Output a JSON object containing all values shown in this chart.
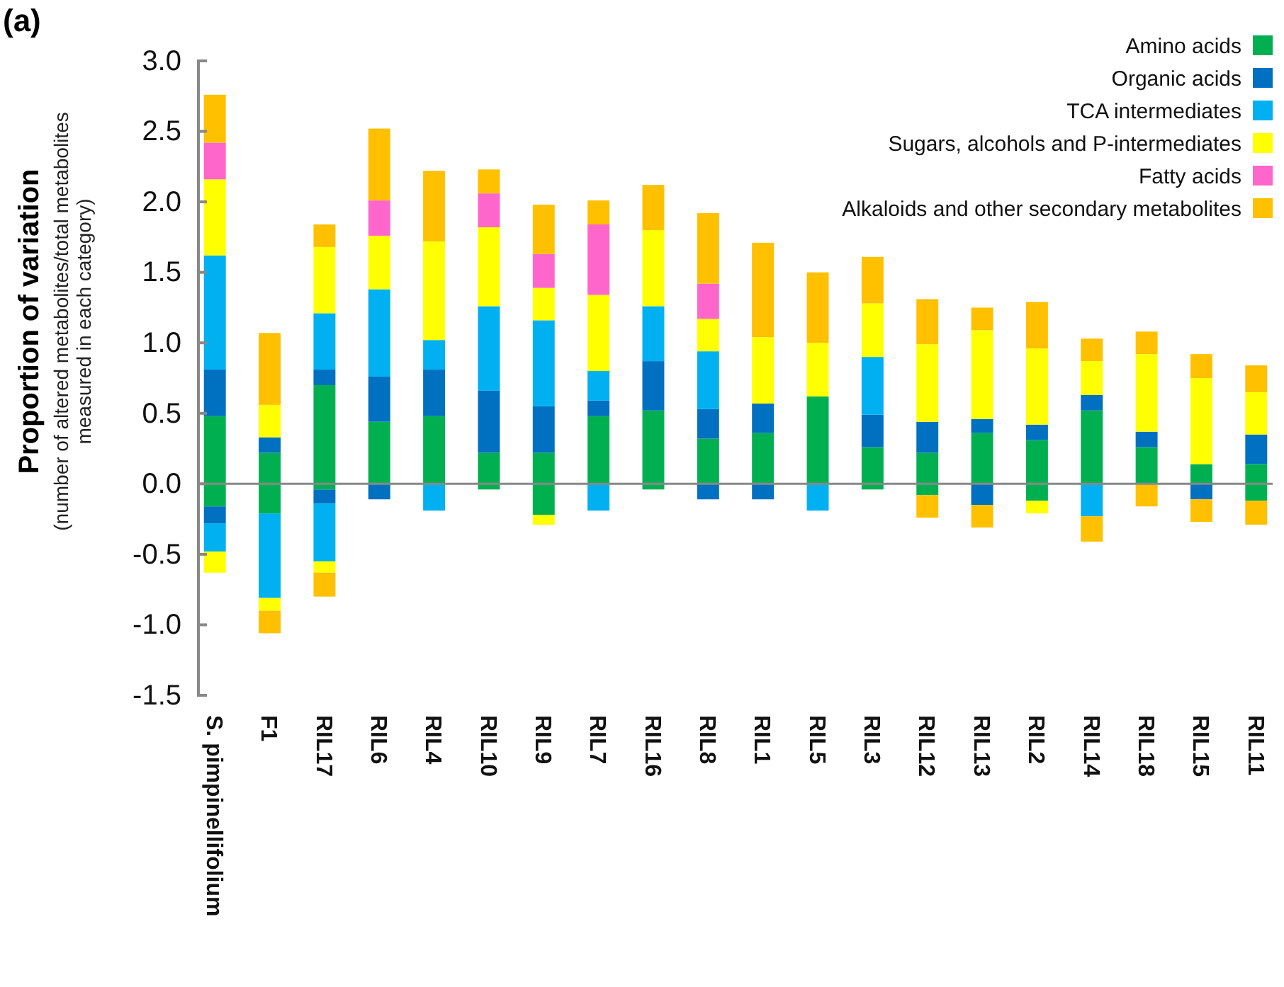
{
  "chart_data": {
    "type": "bar",
    "stacked": true,
    "title": "(a)",
    "ylabel": "Proportion of variation",
    "annotations": [
      "(number of altered metabolites/total metabolites measured in each category)"
    ],
    "categories": [
      "S. pimpinellifolium",
      "F1",
      "RIL17",
      "RIL6",
      "RIL4",
      "RIL10",
      "RIL9",
      "RIL7",
      "RIL16",
      "RIL8",
      "RIL1",
      "RIL5",
      "RIL3",
      "RIL12",
      "RIL13",
      "RIL2",
      "RIL14",
      "RIL18",
      "RIL15",
      "RIL11"
    ],
    "series": [
      {
        "name": "Amino acids",
        "color": "#00b050",
        "values": [
          0.48,
          0.22,
          0.7,
          0.44,
          0.48,
          0.22,
          0.22,
          0.48,
          0.52,
          0.32,
          0.36,
          0.62,
          0.26,
          0.22,
          0.36,
          0.31,
          0.52,
          0.26,
          0.14,
          0.14
        ]
      },
      {
        "name": "Organic acids",
        "color": "#0070c0",
        "values": [
          0.33,
          0.11,
          0.11,
          0.32,
          0.33,
          0.44,
          0.33,
          0.11,
          0.35,
          0.21,
          0.21,
          0,
          0.23,
          0.22,
          0.1,
          0.11,
          0.11,
          0.11,
          0,
          0.21
        ]
      },
      {
        "name": "TCA intermediates",
        "color": "#00b0f0",
        "values": [
          0.81,
          0,
          0.4,
          0.62,
          0.21,
          0.6,
          0.61,
          0.21,
          0.39,
          0.41,
          0,
          0,
          0.41,
          0,
          0,
          0,
          0,
          0,
          0,
          0
        ]
      },
      {
        "name": "Sugars, alcohols and P-intermediates",
        "color": "#ffff00",
        "values": [
          0.54,
          0.23,
          0.47,
          0.38,
          0.7,
          0.56,
          0.23,
          0.54,
          0.54,
          0.23,
          0.47,
          0.38,
          0.38,
          0.55,
          0.63,
          0.54,
          0.24,
          0.55,
          0.61,
          0.3
        ]
      },
      {
        "name": "Fatty acids",
        "color": "#ff66cc",
        "values": [
          0.26,
          0,
          0,
          0.25,
          0,
          0.24,
          0.24,
          0.5,
          0,
          0.25,
          0,
          0,
          0,
          0,
          0,
          0,
          0,
          0,
          0,
          0
        ]
      },
      {
        "name": "Alkaloids and other secondary metabolites",
        "color": "#ffc000",
        "values": [
          0.34,
          0.51,
          0.16,
          0.51,
          0.5,
          0.17,
          0.35,
          0.17,
          0.32,
          0.5,
          0.67,
          0.5,
          0.33,
          0.32,
          0.16,
          0.33,
          0.16,
          0.16,
          0.17,
          0.19
        ]
      },
      {
        "color": "#00b050",
        "values": [
          -0.16,
          -0.21,
          -0.04,
          0,
          0,
          -0.04,
          -0.22,
          0,
          -0.04,
          0,
          0,
          0,
          -0.04,
          -0.08,
          0,
          -0.12,
          0,
          0,
          0,
          -0.12
        ]
      },
      {
        "color": "#0070c0",
        "values": [
          -0.12,
          0,
          -0.1,
          -0.11,
          0,
          0,
          0,
          0,
          0,
          -0.11,
          -0.11,
          0,
          0,
          0,
          -0.15,
          0,
          0,
          0,
          -0.11,
          0
        ]
      },
      {
        "color": "#00b0f0",
        "values": [
          -0.2,
          -0.6,
          -0.41,
          0,
          -0.19,
          0,
          0,
          -0.19,
          0,
          0,
          0,
          -0.19,
          0,
          0,
          0,
          0,
          -0.23,
          0,
          0,
          0
        ]
      },
      {
        "color": "#ffff00",
        "values": [
          -0.15,
          -0.09,
          -0.08,
          0,
          0,
          0,
          -0.07,
          0,
          0,
          0,
          0,
          0,
          0,
          0,
          0,
          -0.09,
          0,
          0,
          0,
          0
        ]
      },
      {
        "color": "#ffc000",
        "values": [
          0,
          -0.16,
          -0.17,
          0,
          0,
          0,
          0,
          0,
          0,
          0,
          0,
          0,
          0,
          -0.16,
          -0.16,
          0,
          -0.18,
          -0.16,
          -0.16,
          -0.17
        ]
      }
    ],
    "ylim": [
      -1.5,
      3.0
    ],
    "yticks": [
      {
        "value": -1.5,
        "label": "-1.5"
      },
      {
        "value": -1,
        "label": "-1.0"
      },
      {
        "value": -0.5,
        "label": "-0.5"
      },
      {
        "value": 0,
        "label": "0.0"
      },
      {
        "value": 0.5,
        "label": "0.5"
      },
      {
        "value": 1,
        "label": "1.0"
      },
      {
        "value": 1.5,
        "label": "1.5"
      },
      {
        "value": 2,
        "label": "2.0"
      },
      {
        "value": 2.5,
        "label": "2.5"
      },
      {
        "value": 3,
        "label": "3.0"
      }
    ],
    "legend": "top right"
  }
}
